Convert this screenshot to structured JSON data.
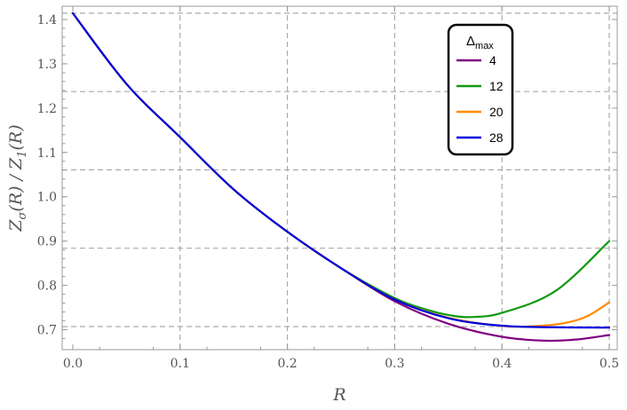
{
  "chart_data": {
    "type": "line",
    "xlabel": "R",
    "ylabel_parts": {
      "z1": "Z",
      "sub1": "σ",
      "mid": "(R) / Z",
      "sub2": "1",
      "end": "(R)"
    },
    "xlim": [
      0.0,
      0.5
    ],
    "ylim": [
      0.655,
      1.43
    ],
    "x_ticks": [
      0.0,
      0.1,
      0.2,
      0.3,
      0.4,
      0.5
    ],
    "x_tick_labels": [
      "0.0",
      "0.1",
      "0.2",
      "0.3",
      "0.4",
      "0.5"
    ],
    "y_ticks": [
      0.7,
      0.8,
      0.9,
      1.0,
      1.1,
      1.2,
      1.3,
      1.4
    ],
    "y_tick_labels": [
      "0.7",
      "0.8",
      "0.9",
      "1.0",
      "1.1",
      "1.2",
      "1.3",
      "1.4"
    ],
    "grid": {
      "vertical": [
        0.1,
        0.2,
        0.3,
        0.4,
        0.5
      ],
      "horizontal": [
        0.7071,
        0.8839,
        1.0607,
        1.2374,
        1.4142
      ]
    },
    "legend": {
      "position": "top-right",
      "title_main": "Δ",
      "title_sub": "max"
    },
    "series": [
      {
        "name": "4",
        "color": "#800080",
        "x": [
          0.0,
          0.05,
          0.1,
          0.15,
          0.2,
          0.25,
          0.3,
          0.35,
          0.4,
          0.44,
          0.47,
          0.5
        ],
        "y": [
          1.4142,
          1.2547,
          1.1345,
          1.0164,
          0.921,
          0.8389,
          0.7643,
          0.7135,
          0.684,
          0.6752,
          0.678,
          0.688
        ]
      },
      {
        "name": "12",
        "color": "#109910",
        "x": [
          0.0,
          0.05,
          0.1,
          0.15,
          0.2,
          0.25,
          0.3,
          0.33,
          0.35,
          0.37,
          0.4,
          0.45,
          0.5
        ],
        "y": [
          1.4142,
          1.2547,
          1.1345,
          1.0164,
          0.921,
          0.8389,
          0.7715,
          0.745,
          0.7333,
          0.7285,
          0.738,
          0.7876,
          0.9
        ]
      },
      {
        "name": "20",
        "color": "#ff8c00",
        "x": [
          0.0,
          0.05,
          0.1,
          0.15,
          0.2,
          0.25,
          0.3,
          0.35,
          0.4,
          0.43,
          0.46,
          0.48,
          0.5
        ],
        "y": [
          1.4142,
          1.2547,
          1.1345,
          1.0164,
          0.921,
          0.8389,
          0.7681,
          0.727,
          0.7085,
          0.708,
          0.7158,
          0.731,
          0.7619
        ]
      },
      {
        "name": "28",
        "color": "#0000e0",
        "x": [
          0.0,
          0.05,
          0.1,
          0.15,
          0.2,
          0.25,
          0.3,
          0.35,
          0.4,
          0.45,
          0.5
        ],
        "y": [
          1.4142,
          1.2547,
          1.1345,
          1.0164,
          0.921,
          0.8389,
          0.7681,
          0.7259,
          0.709,
          0.7055,
          0.7048
        ]
      }
    ]
  }
}
